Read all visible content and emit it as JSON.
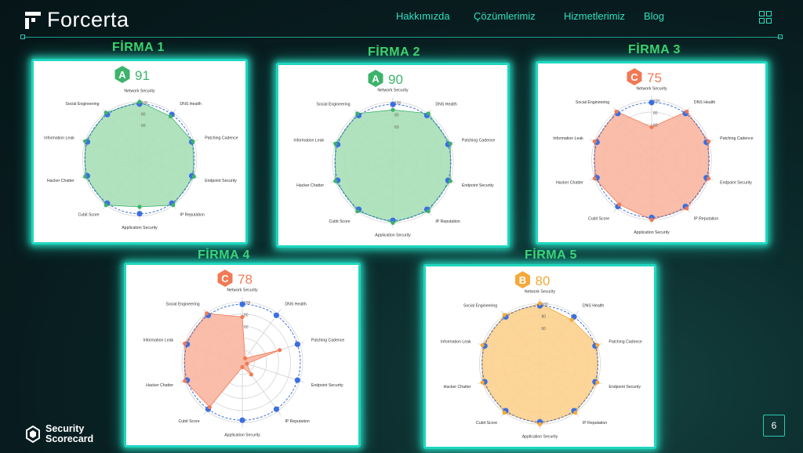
{
  "brand": {
    "name": "Forcerta"
  },
  "nav": {
    "items": [
      "Hakkımızda",
      "Çözümlerimiz",
      "Hizmetlerimiz",
      "Blog"
    ],
    "menu_icon": "grid-icon"
  },
  "footer": {
    "logo_line1": "Security",
    "logo_line2": "Scorecard",
    "page_number": "6"
  },
  "radar_axes": [
    "Network Security",
    "DNS Health",
    "Patching Cadence",
    "Endpoint Security",
    "IP Reputation",
    "Application Security",
    "Cubit Score",
    "Hacker Chatter",
    "Information Leak",
    "Social Engineering"
  ],
  "radar_ticks": [
    "100",
    "80",
    "60"
  ],
  "firms": [
    {
      "title": "FİRMA 1",
      "grade": "A",
      "score": "91",
      "color": "#3db36b",
      "fill": "#a8dfb7",
      "values": [
        100,
        92,
        98,
        100,
        100,
        84,
        100,
        100,
        100,
        100
      ]
    },
    {
      "title": "FİRMA 2",
      "grade": "A",
      "score": "90",
      "color": "#3db36b",
      "fill": "#a8dfb7",
      "values": [
        87,
        100,
        100,
        100,
        100,
        100,
        100,
        100,
        100,
        100
      ]
    },
    {
      "title": "FİRMA 3",
      "grade": "C",
      "score": "75",
      "color": "#f07a55",
      "fill": "#f8b6a0",
      "values": [
        55,
        100,
        100,
        100,
        100,
        100,
        92,
        100,
        100,
        100
      ]
    },
    {
      "title": "FİRMA 4",
      "grade": "C",
      "score": "78",
      "color": "#f07a55",
      "fill": "#f8b6a0",
      "values": [
        75,
        8,
        65,
        8,
        25,
        8,
        92,
        100,
        100,
        100
      ]
    },
    {
      "title": "FİRMA 5",
      "grade": "B",
      "score": "80",
      "color": "#f5a93a",
      "fill": "#fcd08e",
      "values": [
        100,
        90,
        100,
        100,
        100,
        100,
        100,
        100,
        100,
        100
      ]
    }
  ]
}
